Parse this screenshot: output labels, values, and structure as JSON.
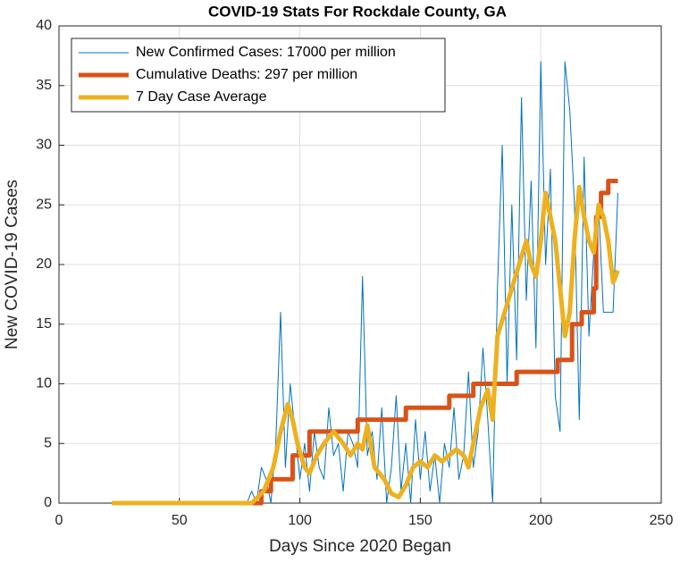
{
  "chart_data": {
    "type": "line",
    "title": "COVID-19 Stats For Rockdale County, GA",
    "xlabel": "Days Since 2020 Began",
    "ylabel": "New COVID-19 Cases",
    "xlim": [
      0,
      250
    ],
    "xticks": [
      0,
      50,
      100,
      150,
      200,
      250
    ],
    "ylim": [
      0,
      40
    ],
    "yticks": [
      0,
      5,
      10,
      15,
      20,
      25,
      30,
      35,
      40
    ],
    "grid": true,
    "legend": "upper-left",
    "series": [
      {
        "name": "New Confirmed Cases: 17000 per million",
        "color": "#0072bd",
        "width": 1,
        "x": [
          22,
          78,
          80,
          82,
          84,
          86,
          88,
          90,
          92,
          94,
          96,
          98,
          100,
          102,
          104,
          106,
          108,
          110,
          112,
          114,
          116,
          118,
          120,
          122,
          124,
          126,
          128,
          130,
          132,
          134,
          136,
          138,
          140,
          142,
          144,
          146,
          148,
          150,
          152,
          154,
          156,
          158,
          160,
          162,
          164,
          166,
          168,
          170,
          172,
          174,
          176,
          178,
          180,
          182,
          184,
          186,
          188,
          190,
          192,
          194,
          196,
          198,
          200,
          202,
          204,
          206,
          208,
          210,
          212,
          214,
          216,
          218,
          220,
          222,
          224,
          226,
          228,
          230,
          232
        ],
        "values": [
          0,
          0,
          1,
          0,
          3,
          2,
          0,
          5,
          16,
          3,
          10,
          6,
          2,
          5,
          1,
          6,
          3,
          2,
          8,
          4,
          5,
          1,
          6,
          5,
          3,
          19,
          4,
          6,
          2,
          8,
          0,
          3,
          9,
          1,
          5,
          0,
          7,
          2,
          6,
          1,
          4,
          0,
          5,
          3,
          8,
          2,
          4,
          11,
          3,
          6,
          13,
          7,
          0,
          18,
          30,
          10,
          25,
          12,
          34,
          17,
          27,
          13,
          37,
          20,
          28,
          9,
          6,
          37,
          33,
          25,
          7,
          29,
          14,
          21,
          25,
          16,
          16,
          16,
          26
        ]
      },
      {
        "name": "Cumulative Deaths: 297 per million",
        "color": "#d95319",
        "width": 5,
        "x": [
          22,
          84,
          84,
          88,
          88,
          97,
          97,
          104,
          104,
          124,
          124,
          144,
          144,
          162,
          162,
          172,
          172,
          190,
          190,
          207,
          207,
          213,
          213,
          217,
          217,
          222,
          222,
          223,
          223,
          225,
          225,
          228,
          228,
          232
        ],
        "values": [
          0,
          0,
          1,
          1,
          2,
          2,
          4,
          4,
          6,
          6,
          7,
          7,
          8,
          8,
          9,
          9,
          10,
          10,
          11,
          11,
          12,
          12,
          15,
          15,
          16,
          16,
          18,
          18,
          24,
          24,
          26,
          26,
          27,
          27
        ]
      },
      {
        "name": "7 Day Case Average",
        "color": "#edb120",
        "width": 5,
        "x": [
          22,
          80,
          85,
          89,
          92,
          95,
          97,
          99,
          102,
          104,
          107,
          110,
          114,
          118,
          121,
          124,
          126,
          128,
          131,
          135,
          138,
          141,
          144,
          147,
          150,
          153,
          156,
          159,
          162,
          165,
          168,
          170,
          172,
          175,
          178,
          180,
          182,
          185,
          188,
          191,
          194,
          196,
          198,
          200,
          202,
          204,
          206,
          208,
          210,
          212,
          214,
          216,
          218,
          220,
          222,
          224,
          226,
          228,
          230,
          232
        ],
        "values": [
          0,
          0,
          1,
          3,
          6,
          8.3,
          7,
          5,
          3,
          2.5,
          4,
          5,
          6,
          5,
          4,
          5,
          4.5,
          6.5,
          3,
          2,
          0.8,
          0.5,
          1.5,
          3,
          3.5,
          3,
          4,
          3.5,
          4,
          4.5,
          4,
          3,
          5,
          8,
          9.5,
          7,
          14,
          16,
          18,
          20,
          22,
          20,
          19,
          22,
          26,
          24,
          22,
          18,
          14,
          16,
          22,
          26.5,
          24,
          22,
          21,
          25,
          24,
          22,
          18.5,
          19.5
        ]
      }
    ]
  }
}
